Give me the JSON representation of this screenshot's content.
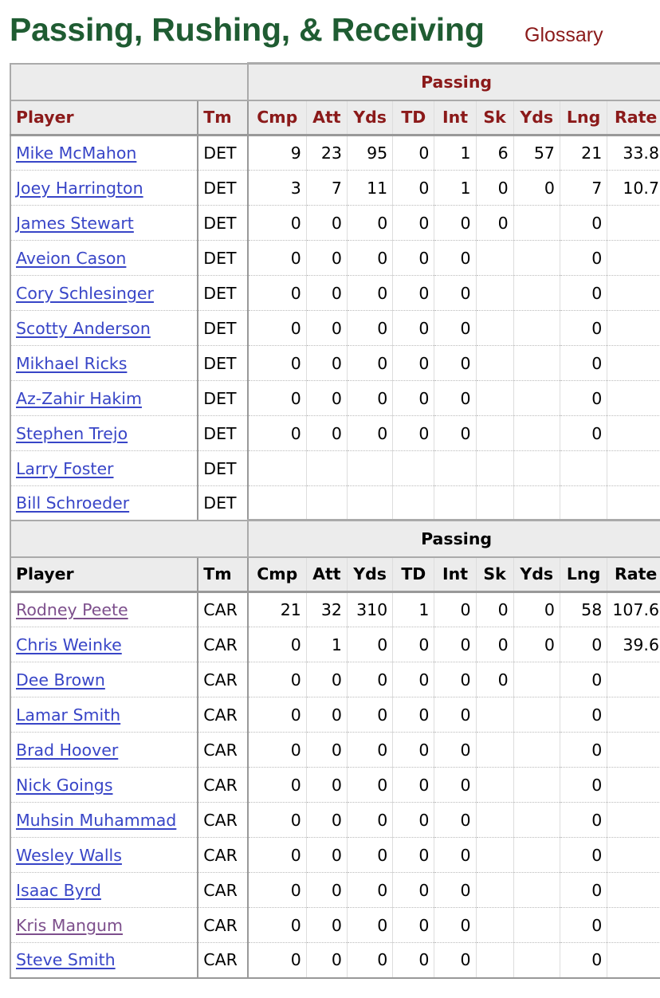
{
  "header": {
    "title": "Passing, Rushing, & Receiving",
    "glossary_label": "Glossary"
  },
  "colors": {
    "title": "#1f5c32",
    "header_text_team1": "#8b1a1a",
    "link": "#3845c7",
    "visited_link": "#7d4f8c",
    "header_bg": "#ececec"
  },
  "columns": [
    "Player",
    "Tm",
    "Cmp",
    "Att",
    "Yds",
    "TD",
    "Int",
    "Sk",
    "Yds",
    "Lng",
    "Rate"
  ],
  "tables": [
    {
      "group_label": "Passing",
      "rows": [
        {
          "player": "Mike McMahon",
          "visited": false,
          "tm": "DET",
          "cmp": "9",
          "att": "23",
          "yds": "95",
          "td": "0",
          "int": "1",
          "sk": "6",
          "syds": "57",
          "lng": "21",
          "rate": "33.8"
        },
        {
          "player": "Joey Harrington",
          "visited": false,
          "tm": "DET",
          "cmp": "3",
          "att": "7",
          "yds": "11",
          "td": "0",
          "int": "1",
          "sk": "0",
          "syds": "0",
          "lng": "7",
          "rate": "10.7"
        },
        {
          "player": "James Stewart",
          "visited": false,
          "tm": "DET",
          "cmp": "0",
          "att": "0",
          "yds": "0",
          "td": "0",
          "int": "0",
          "sk": "0",
          "syds": "",
          "lng": "0",
          "rate": ""
        },
        {
          "player": "Aveion Cason",
          "visited": false,
          "tm": "DET",
          "cmp": "0",
          "att": "0",
          "yds": "0",
          "td": "0",
          "int": "0",
          "sk": "",
          "syds": "",
          "lng": "0",
          "rate": ""
        },
        {
          "player": "Cory Schlesinger",
          "visited": false,
          "tm": "DET",
          "cmp": "0",
          "att": "0",
          "yds": "0",
          "td": "0",
          "int": "0",
          "sk": "",
          "syds": "",
          "lng": "0",
          "rate": ""
        },
        {
          "player": "Scotty Anderson",
          "visited": false,
          "tm": "DET",
          "cmp": "0",
          "att": "0",
          "yds": "0",
          "td": "0",
          "int": "0",
          "sk": "",
          "syds": "",
          "lng": "0",
          "rate": ""
        },
        {
          "player": "Mikhael Ricks",
          "visited": false,
          "tm": "DET",
          "cmp": "0",
          "att": "0",
          "yds": "0",
          "td": "0",
          "int": "0",
          "sk": "",
          "syds": "",
          "lng": "0",
          "rate": ""
        },
        {
          "player": "Az-Zahir Hakim",
          "visited": false,
          "tm": "DET",
          "cmp": "0",
          "att": "0",
          "yds": "0",
          "td": "0",
          "int": "0",
          "sk": "",
          "syds": "",
          "lng": "0",
          "rate": ""
        },
        {
          "player": "Stephen Trejo",
          "visited": false,
          "tm": "DET",
          "cmp": "0",
          "att": "0",
          "yds": "0",
          "td": "0",
          "int": "0",
          "sk": "",
          "syds": "",
          "lng": "0",
          "rate": ""
        },
        {
          "player": "Larry Foster",
          "visited": false,
          "tm": "DET",
          "cmp": "",
          "att": "",
          "yds": "",
          "td": "",
          "int": "",
          "sk": "",
          "syds": "",
          "lng": "",
          "rate": ""
        },
        {
          "player": "Bill Schroeder",
          "visited": false,
          "tm": "DET",
          "cmp": "",
          "att": "",
          "yds": "",
          "td": "",
          "int": "",
          "sk": "",
          "syds": "",
          "lng": "",
          "rate": ""
        }
      ]
    },
    {
      "group_label": "Passing",
      "rows": [
        {
          "player": "Rodney Peete",
          "visited": true,
          "tm": "CAR",
          "cmp": "21",
          "att": "32",
          "yds": "310",
          "td": "1",
          "int": "0",
          "sk": "0",
          "syds": "0",
          "lng": "58",
          "rate": "107.6"
        },
        {
          "player": "Chris Weinke",
          "visited": false,
          "tm": "CAR",
          "cmp": "0",
          "att": "1",
          "yds": "0",
          "td": "0",
          "int": "0",
          "sk": "0",
          "syds": "0",
          "lng": "0",
          "rate": "39.6"
        },
        {
          "player": "Dee Brown",
          "visited": false,
          "tm": "CAR",
          "cmp": "0",
          "att": "0",
          "yds": "0",
          "td": "0",
          "int": "0",
          "sk": "0",
          "syds": "",
          "lng": "0",
          "rate": ""
        },
        {
          "player": "Lamar Smith",
          "visited": false,
          "tm": "CAR",
          "cmp": "0",
          "att": "0",
          "yds": "0",
          "td": "0",
          "int": "0",
          "sk": "",
          "syds": "",
          "lng": "0",
          "rate": ""
        },
        {
          "player": "Brad Hoover",
          "visited": false,
          "tm": "CAR",
          "cmp": "0",
          "att": "0",
          "yds": "0",
          "td": "0",
          "int": "0",
          "sk": "",
          "syds": "",
          "lng": "0",
          "rate": ""
        },
        {
          "player": "Nick Goings",
          "visited": false,
          "tm": "CAR",
          "cmp": "0",
          "att": "0",
          "yds": "0",
          "td": "0",
          "int": "0",
          "sk": "",
          "syds": "",
          "lng": "0",
          "rate": ""
        },
        {
          "player": "Muhsin Muhammad",
          "visited": false,
          "tm": "CAR",
          "cmp": "0",
          "att": "0",
          "yds": "0",
          "td": "0",
          "int": "0",
          "sk": "",
          "syds": "",
          "lng": "0",
          "rate": ""
        },
        {
          "player": "Wesley Walls",
          "visited": false,
          "tm": "CAR",
          "cmp": "0",
          "att": "0",
          "yds": "0",
          "td": "0",
          "int": "0",
          "sk": "",
          "syds": "",
          "lng": "0",
          "rate": ""
        },
        {
          "player": "Isaac Byrd",
          "visited": false,
          "tm": "CAR",
          "cmp": "0",
          "att": "0",
          "yds": "0",
          "td": "0",
          "int": "0",
          "sk": "",
          "syds": "",
          "lng": "0",
          "rate": ""
        },
        {
          "player": "Kris Mangum",
          "visited": true,
          "tm": "CAR",
          "cmp": "0",
          "att": "0",
          "yds": "0",
          "td": "0",
          "int": "0",
          "sk": "",
          "syds": "",
          "lng": "0",
          "rate": ""
        },
        {
          "player": "Steve Smith",
          "visited": false,
          "tm": "CAR",
          "cmp": "0",
          "att": "0",
          "yds": "0",
          "td": "0",
          "int": "0",
          "sk": "",
          "syds": "",
          "lng": "0",
          "rate": ""
        }
      ]
    }
  ]
}
